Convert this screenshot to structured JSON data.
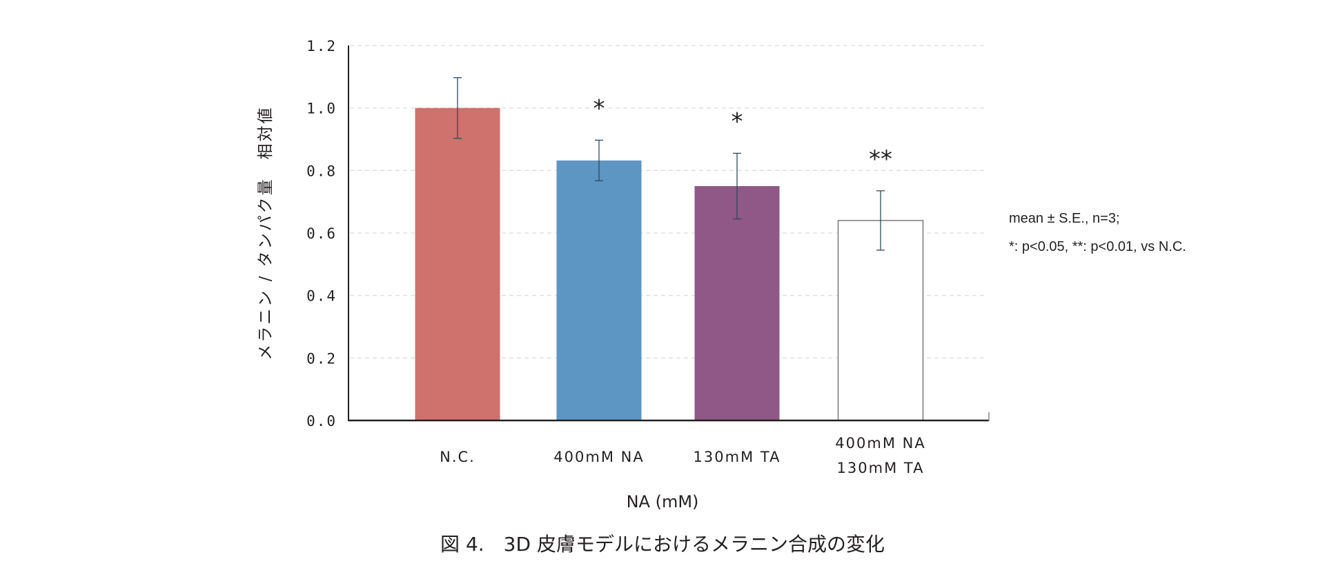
{
  "chart_data": {
    "type": "bar",
    "title": "",
    "ylabel": "メラニン / タンパク量　相対値",
    "xlabel": "NA (mM)",
    "ylim": [
      0,
      1.2
    ],
    "yticks": [
      "0.0",
      "0.2",
      "0.4",
      "0.6",
      "0.8",
      "1.0",
      "1.2"
    ],
    "grid": true,
    "categories": [
      [
        "N.C."
      ],
      [
        "400mM NA"
      ],
      [
        "130mM TA"
      ],
      [
        "400mM NA",
        "130mM TA"
      ]
    ],
    "values": [
      1.0,
      0.832,
      0.75,
      0.64
    ],
    "errors": [
      0.097,
      0.065,
      0.105,
      0.095
    ],
    "significance": [
      "",
      "*",
      "*",
      "**"
    ],
    "colors": [
      "#cf716c",
      "#5d95c3",
      "#8f5886",
      "#ffffff"
    ],
    "legend": "none"
  },
  "notes": [
    "mean ± S.E., n=3;",
    "*: p<0.05, **: p<0.01, vs N.C."
  ],
  "caption": "図 4.　3D 皮膚モデルにおけるメラニン合成の変化"
}
